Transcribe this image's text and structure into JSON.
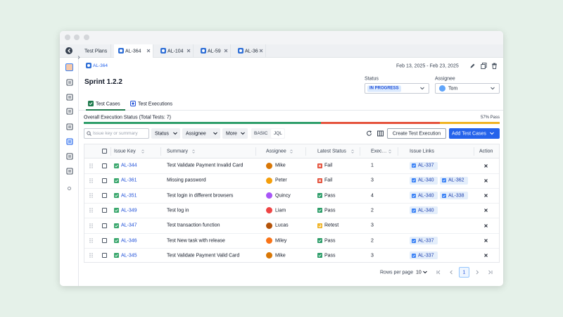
{
  "tabs": [
    "Test Plans",
    "AL-364",
    "AL-104",
    "AL-59",
    "AL-36"
  ],
  "breadcrumb": "AL-364",
  "date_range": "Feb 13, 2025 - Feb 23, 2025",
  "title": "Sprint 1.2.2",
  "status": {
    "label": "Status",
    "value": "IN PROGRESS"
  },
  "assignee": {
    "label": "Assignee",
    "value": "Tom"
  },
  "view_tabs": [
    "Test Cases",
    "Test Executions"
  ],
  "progress": {
    "label": "Overall Execution Status (Total Tests: 7)",
    "summary": "57% Pass"
  },
  "toolbar": {
    "search_placeholder": "Issue key or summary",
    "filters": [
      "Status",
      "Assignee",
      "More"
    ],
    "modes": [
      "BASIC",
      "JQL"
    ],
    "buttons": [
      "Create Test Execution",
      "Add Test Cases"
    ]
  },
  "table": {
    "columns": [
      "Issue Key",
      "Summary",
      "Assignee",
      "Latest Status",
      "Exec…",
      "Issue Links",
      "Action"
    ],
    "rows": [
      {
        "key": "AL-344",
        "summary": "Test Validate Payment Invalid Card",
        "assignee": "Mike",
        "status": "Fail",
        "executions": 1,
        "links": [
          "AL-337"
        ]
      },
      {
        "key": "AL-361",
        "summary": "Missing password",
        "assignee": "Peter",
        "status": "Fail",
        "executions": 3,
        "links": [
          "AL-340",
          "AL-362"
        ]
      },
      {
        "key": "AL-351",
        "summary": "Test login in different browsers",
        "assignee": "Quincy",
        "status": "Pass",
        "executions": 4,
        "links": [
          "AL-340",
          "AL-338"
        ]
      },
      {
        "key": "AL-349",
        "summary": "Test log in",
        "assignee": "Liam",
        "status": "Pass",
        "executions": 2,
        "links": [
          "AL-340"
        ]
      },
      {
        "key": "AL-347",
        "summary": "Test transaction function",
        "assignee": "Lucas",
        "status": "Retest",
        "executions": 3,
        "links": []
      },
      {
        "key": "AL-346",
        "summary": "Test New task with release",
        "assignee": "Miley",
        "status": "Pass",
        "executions": 2,
        "links": [
          "AL-337"
        ]
      },
      {
        "key": "AL-345",
        "summary": "Test Validate Payment Valid Card",
        "assignee": "Mike",
        "status": "Pass",
        "executions": 3,
        "links": [
          "AL-337"
        ]
      }
    ]
  },
  "pagination": {
    "label": "Rows per page",
    "value": "10",
    "page": "1"
  }
}
